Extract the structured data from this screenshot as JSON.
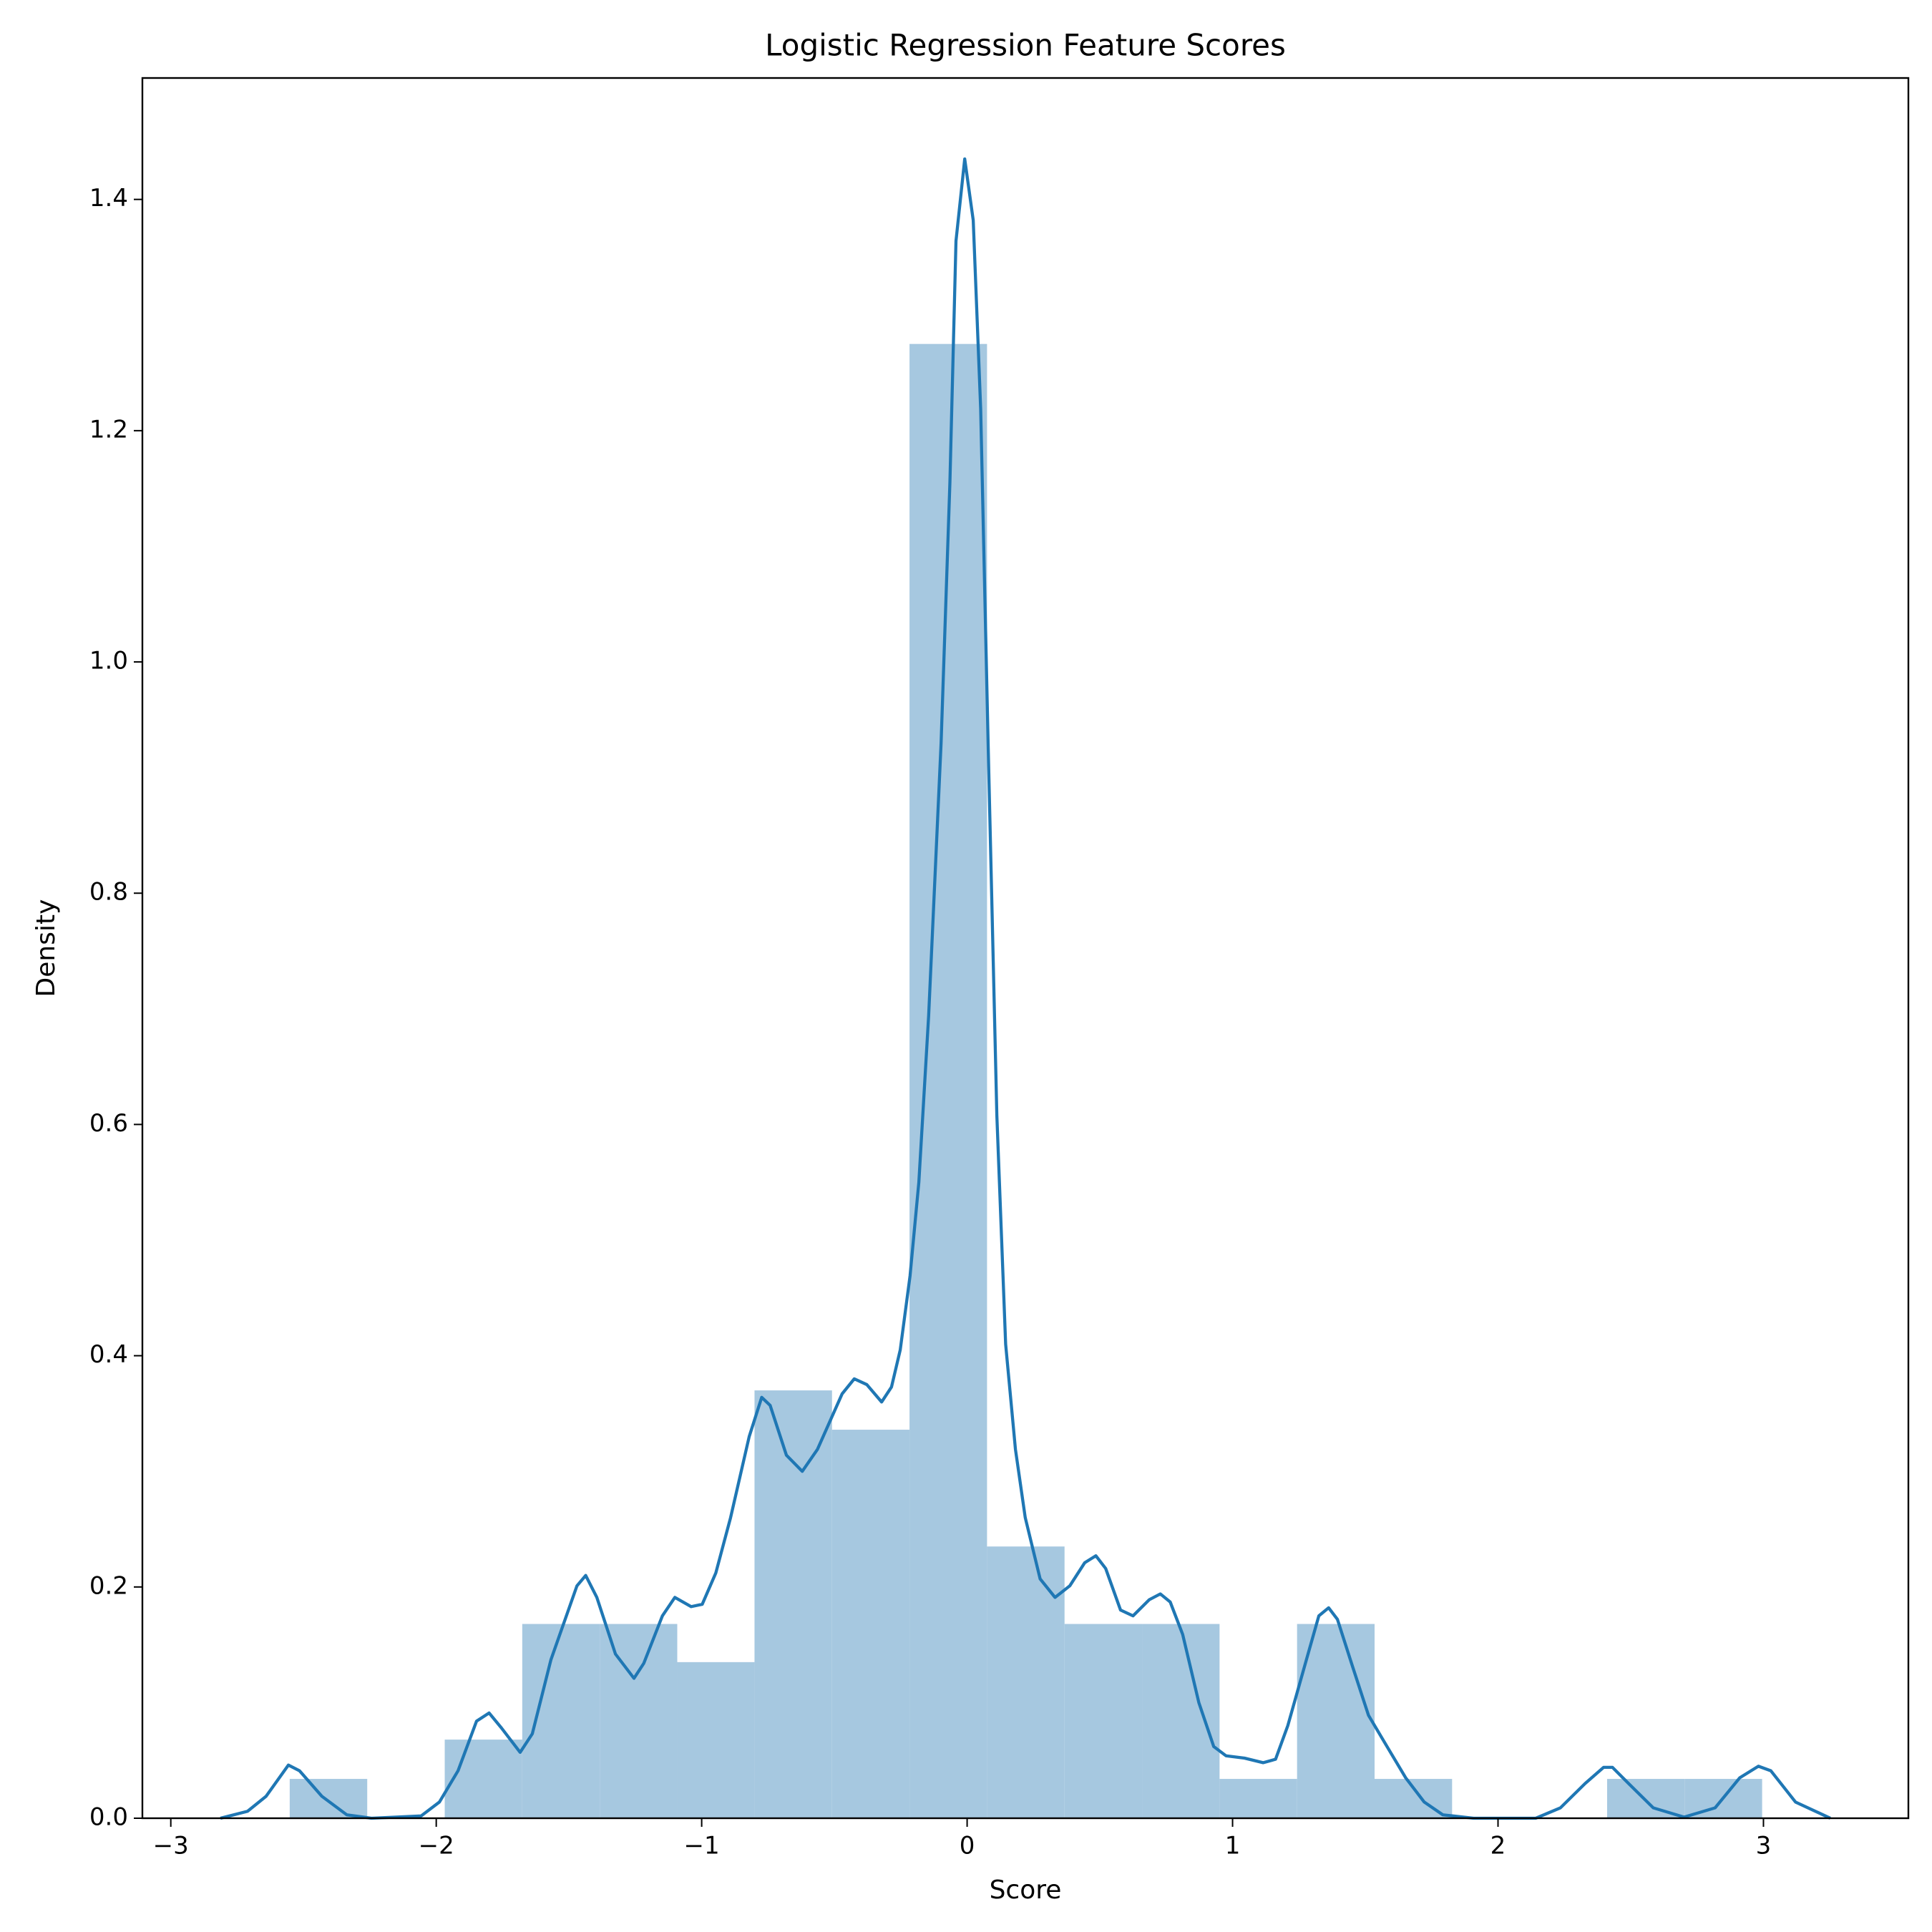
{
  "chart_data": {
    "type": "histogram",
    "title": "Logistic Regression Feature Scores",
    "x_label": "Score",
    "y_label": "Density",
    "bins": [
      -2.552,
      -2.26,
      -1.968,
      -1.676,
      -1.384,
      -1.092,
      -0.801,
      -0.509,
      -0.217,
      0.075,
      0.367,
      0.659,
      0.951,
      1.243,
      1.535,
      1.827,
      2.119,
      2.411,
      2.703,
      2.995
    ],
    "values": [
      0.034,
      0,
      0.068,
      0.168,
      0.168,
      0.135,
      0.37,
      0.336,
      1.275,
      0.235,
      0.168,
      0.168,
      0.034,
      0.168,
      0.034,
      0,
      0,
      0.034,
      0.034
    ],
    "color": "#a6c8e0",
    "kde": {
      "color": "#1f77b4",
      "x": [
        -2.813,
        -2.711,
        -2.641,
        -2.557,
        -2.515,
        -2.431,
        -2.337,
        -2.244,
        -2.057,
        -1.988,
        -1.918,
        -1.848,
        -1.801,
        -1.754,
        -1.684,
        -1.638,
        -1.568,
        -1.47,
        -1.437,
        -1.395,
        -1.325,
        -1.255,
        -1.218,
        -1.148,
        -1.101,
        -1.04,
        -0.998,
        -0.947,
        -0.891,
        -0.821,
        -0.774,
        -0.742,
        -0.681,
        -0.621,
        -0.564,
        -0.471,
        -0.425,
        -0.378,
        -0.322,
        -0.285,
        -0.252,
        -0.215,
        -0.182,
        -0.145,
        -0.098,
        -0.065,
        -0.042,
        -0.009,
        0.023,
        0.051,
        0.079,
        0.112,
        0.145,
        0.182,
        0.219,
        0.275,
        0.331,
        0.387,
        0.443,
        0.485,
        0.522,
        0.578,
        0.625,
        0.686,
        0.728,
        0.765,
        0.812,
        0.873,
        0.929,
        0.975,
        1.045,
        1.115,
        1.162,
        1.208,
        1.278,
        1.325,
        1.362,
        1.395,
        1.451,
        1.512,
        1.582,
        1.652,
        1.722,
        1.792,
        1.908,
        2.142,
        2.235,
        2.328,
        2.398,
        2.431,
        2.492,
        2.585,
        2.701,
        2.818,
        2.911,
        2.981,
        3.028,
        3.121,
        3.252
      ],
      "values": [
        0,
        0.006,
        0.019,
        0.046,
        0.041,
        0.019,
        0.003,
        0,
        0.002,
        0.014,
        0.041,
        0.084,
        0.091,
        0.078,
        0.057,
        0.073,
        0.137,
        0.201,
        0.21,
        0.191,
        0.142,
        0.121,
        0.134,
        0.175,
        0.191,
        0.183,
        0.185,
        0.212,
        0.26,
        0.33,
        0.364,
        0.357,
        0.314,
        0.3,
        0.319,
        0.367,
        0.38,
        0.375,
        0.36,
        0.373,
        0.405,
        0.469,
        0.55,
        0.694,
        0.93,
        1.155,
        1.364,
        1.435,
        1.382,
        1.219,
        0.93,
        0.608,
        0.41,
        0.319,
        0.26,
        0.207,
        0.191,
        0.201,
        0.221,
        0.227,
        0.216,
        0.18,
        0.175,
        0.189,
        0.194,
        0.187,
        0.159,
        0.1,
        0.062,
        0.054,
        0.052,
        0.048,
        0.051,
        0.08,
        0.137,
        0.175,
        0.182,
        0.172,
        0.132,
        0.089,
        0.062,
        0.035,
        0.014,
        0.003,
        0,
        0,
        0.009,
        0.03,
        0.044,
        0.044,
        0.03,
        0.009,
        0.001,
        0.009,
        0.035,
        0.045,
        0.041,
        0.014,
        0
      ]
    },
    "xlim": [
      -3.107,
      3.546
    ],
    "ylim": [
      0,
      1.505
    ],
    "xticks": [
      {
        "value": -3,
        "label": "−3"
      },
      {
        "value": -2,
        "label": "−2"
      },
      {
        "value": -1,
        "label": "−1"
      },
      0,
      1,
      2,
      3
    ],
    "yticks": [
      {
        "value": 0,
        "label": "0.0"
      },
      0.2,
      0.4,
      0.6,
      0.8,
      {
        "value": 1,
        "label": "1.0"
      },
      1.2,
      1.4
    ]
  }
}
